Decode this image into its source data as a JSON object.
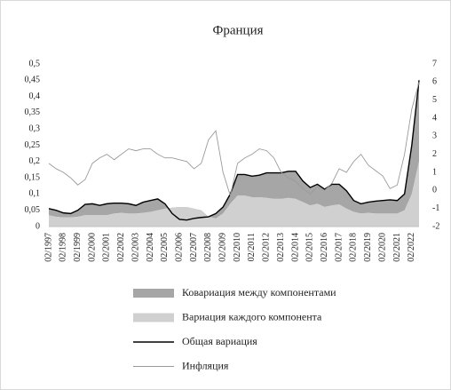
{
  "chart_data": {
    "type": "area_line",
    "title": "Франция",
    "categories": [
      "02/1997",
      null,
      "02/1998",
      null,
      "02/1999",
      null,
      "02/2000",
      null,
      "02/2001",
      null,
      "02/2002",
      null,
      "02/2003",
      null,
      "02/2004",
      null,
      "02/2005",
      null,
      "02/2006",
      null,
      "02/2007",
      null,
      "02/2008",
      null,
      "02/2009",
      null,
      "02/2010",
      null,
      "02/2011",
      null,
      "02/2012",
      null,
      "02/2013",
      null,
      "02/2014",
      null,
      "02/2015",
      null,
      "02/2016",
      null,
      "02/2017",
      null,
      "02/2018",
      null,
      "02/2019",
      null,
      "02/2020",
      null,
      "02/2021",
      null,
      "02/2022",
      null
    ],
    "series": [
      {
        "name": "Ковариация между компонентами",
        "type": "area",
        "stacked": true,
        "color": "#a6a6a6",
        "values": [
          0.02,
          0.02,
          0.014,
          0.012,
          0.02,
          0.033,
          0.035,
          0.03,
          0.035,
          0.032,
          0.03,
          0.03,
          0.025,
          0.033,
          0.035,
          0.035,
          0.015,
          -0.018,
          -0.038,
          -0.04,
          -0.03,
          -0.022,
          0.0,
          0.015,
          0.02,
          0.03,
          0.065,
          0.065,
          0.065,
          0.068,
          0.077,
          0.08,
          0.08,
          0.082,
          0.085,
          0.065,
          0.055,
          0.06,
          0.055,
          0.065,
          0.062,
          0.055,
          0.035,
          0.03,
          0.033,
          0.038,
          0.04,
          0.042,
          0.04,
          0.05,
          0.15,
          0.25
        ]
      },
      {
        "name": "Вариация каждого компонента",
        "type": "area",
        "stacked": true,
        "color": "#d0d0d0",
        "values": [
          0.035,
          0.03,
          0.028,
          0.028,
          0.03,
          0.035,
          0.035,
          0.035,
          0.035,
          0.04,
          0.042,
          0.04,
          0.04,
          0.042,
          0.045,
          0.05,
          0.055,
          0.058,
          0.06,
          0.06,
          0.055,
          0.05,
          0.03,
          0.025,
          0.04,
          0.07,
          0.095,
          0.095,
          0.09,
          0.09,
          0.088,
          0.085,
          0.085,
          0.088,
          0.085,
          0.075,
          0.065,
          0.07,
          0.06,
          0.065,
          0.068,
          0.055,
          0.045,
          0.04,
          0.042,
          0.04,
          0.04,
          0.04,
          0.04,
          0.05,
          0.1,
          0.2
        ]
      },
      {
        "name": "Общая вариация",
        "type": "line",
        "color": "#000000",
        "values": [
          0.055,
          0.05,
          0.042,
          0.04,
          0.05,
          0.068,
          0.07,
          0.065,
          0.07,
          0.072,
          0.072,
          0.07,
          0.065,
          0.075,
          0.08,
          0.085,
          0.07,
          0.04,
          0.022,
          0.02,
          0.025,
          0.028,
          0.03,
          0.04,
          0.06,
          0.1,
          0.16,
          0.16,
          0.155,
          0.158,
          0.165,
          0.165,
          0.165,
          0.17,
          0.17,
          0.14,
          0.12,
          0.13,
          0.115,
          0.13,
          0.13,
          0.11,
          0.08,
          0.07,
          0.075,
          0.078,
          0.08,
          0.082,
          0.08,
          0.1,
          0.25,
          0.45
        ]
      },
      {
        "name": "Инфляция",
        "type": "line",
        "axis": "y2",
        "color": "#9a9a9a",
        "values": [
          1.5,
          1.2,
          1.0,
          0.7,
          0.3,
          0.6,
          1.5,
          1.8,
          2.0,
          1.7,
          2.0,
          2.3,
          2.2,
          2.3,
          2.3,
          2.0,
          1.8,
          1.8,
          1.7,
          1.6,
          1.2,
          1.5,
          2.8,
          3.3,
          1.0,
          -0.3,
          1.5,
          1.8,
          2.0,
          2.3,
          2.2,
          1.8,
          1.0,
          0.7,
          0.5,
          0.1,
          -0.2,
          0.2,
          0.0,
          0.4,
          1.2,
          1.0,
          1.6,
          2.0,
          1.4,
          1.1,
          0.8,
          0.1,
          0.3,
          2.0,
          4.5,
          6.0
        ]
      }
    ],
    "ylim": [
      0,
      0.5
    ],
    "yticks": [
      0,
      {
        "value": 0.05,
        "label": "0,05"
      },
      {
        "value": 0.1,
        "label": "0,1"
      },
      {
        "value": 0.15,
        "label": "0,15"
      },
      {
        "value": 0.2,
        "label": "0,2"
      },
      {
        "value": 0.25,
        "label": "0,25"
      },
      {
        "value": 0.3,
        "label": "0,3"
      },
      {
        "value": 0.35,
        "label": "0,35"
      },
      {
        "value": 0.4,
        "label": "0,4"
      },
      {
        "value": 0.45,
        "label": "0,45"
      },
      {
        "value": 0.5,
        "label": "0,5"
      }
    ],
    "y2lim": [
      -2,
      7
    ],
    "y2ticks": [
      -2,
      -1,
      0,
      1,
      2,
      3,
      4,
      5,
      6,
      7
    ],
    "grid": false,
    "legend": "bottom"
  }
}
